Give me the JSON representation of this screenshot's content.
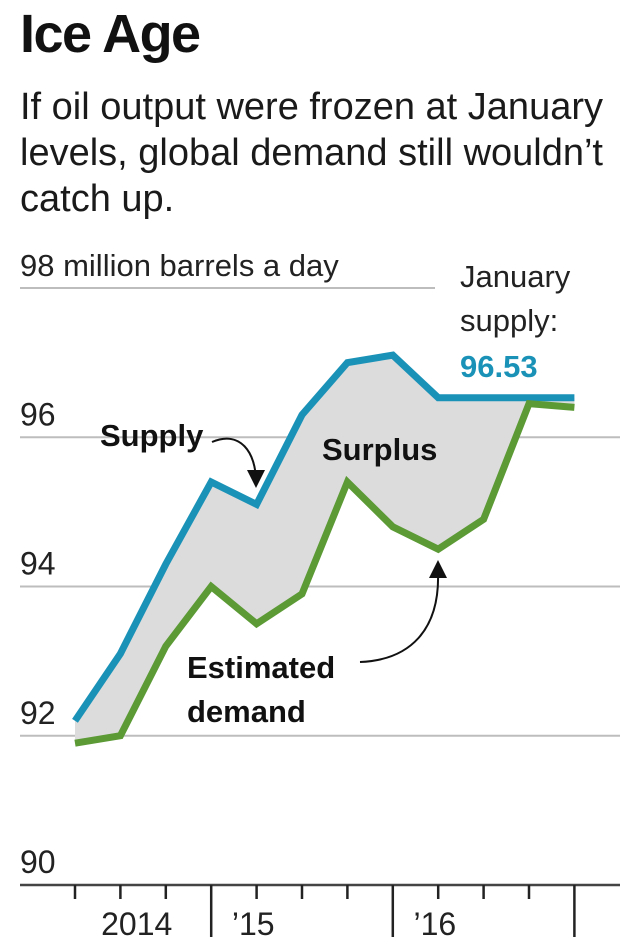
{
  "title": "Ice Age",
  "subtitle": "If oil output were frozen at January levels, global demand still wouldn’t catch up.",
  "chart_data": {
    "type": "area",
    "title": "Ice Age",
    "ylabel": "98 million barrels a day",
    "xlabel": "",
    "ylim": [
      90,
      98
    ],
    "yticks": [
      90,
      92,
      94,
      96,
      98
    ],
    "ytick_labels": [
      "90",
      "92",
      "94",
      "96",
      "98 million barrels a day"
    ],
    "x": [
      0,
      1,
      2,
      3,
      4,
      5,
      6,
      7,
      8,
      9,
      10,
      11
    ],
    "periods": [
      "2014 Q1",
      "2014 Q2",
      "2014 Q3",
      "2014 Q4",
      "2015 Q1",
      "2015 Q2",
      "2015 Q3",
      "2015 Q4",
      "2016 Q1",
      "2016 Q2",
      "2016 Q3",
      "2016 Q4"
    ],
    "x_labels": [
      {
        "text": "2014",
        "at": 1.5
      },
      {
        "text": "’15",
        "at": 3.5
      },
      {
        "text": "’16",
        "at": 7.5
      }
    ],
    "year_starts": [
      3,
      7,
      11
    ],
    "series": [
      {
        "name": "Supply",
        "color": "#1a92b8",
        "values": [
          92.2,
          93.1,
          94.3,
          95.4,
          95.1,
          96.3,
          97.0,
          97.1,
          96.53,
          96.53,
          96.53,
          96.53
        ]
      },
      {
        "name": "Estimated demand",
        "color": "#5b9a35",
        "values": [
          91.9,
          92.0,
          93.2,
          94.0,
          93.5,
          93.9,
          95.4,
          94.8,
          94.5,
          94.9,
          96.45,
          96.4
        ]
      }
    ],
    "fill_between_label": "Surplus",
    "fill_color": "#dcdcdc",
    "annotations": {
      "supply_label": "Supply",
      "surplus_label": "Surplus",
      "demand_label_line1": "Estimated",
      "demand_label_line2": "demand",
      "callout_line1": "January",
      "callout_line2": "supply:",
      "callout_value": "96.53"
    }
  }
}
